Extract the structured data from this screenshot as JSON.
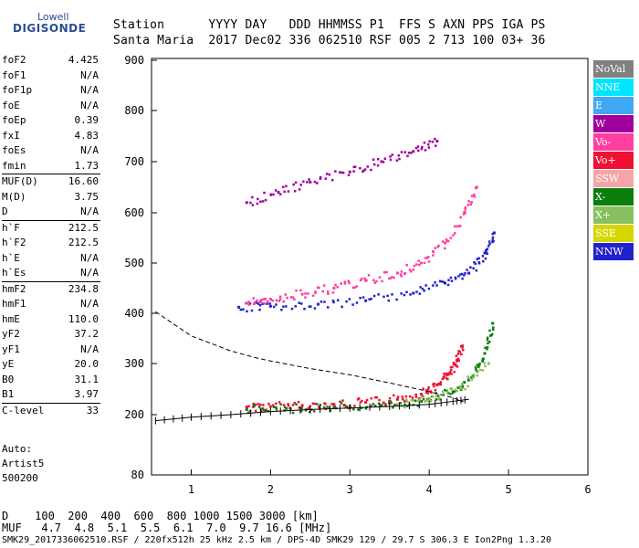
{
  "logo": {
    "line1": "Lowell",
    "line2": "DIGISONDE"
  },
  "header": {
    "row1": "Station      YYYY DAY   DDD HHMMSS P1  FFS S AXN PPS IGA PS",
    "row2": "Santa Maria  2017 Dec02 336 062510 RSF 005 2 713 100 03+ 36"
  },
  "side_groups": [
    [
      {
        "key": "foF2",
        "value": "4.425"
      },
      {
        "key": "foF1",
        "value": "N/A"
      },
      {
        "key": "foF1p",
        "value": "N/A"
      },
      {
        "key": "foE",
        "value": "N/A"
      },
      {
        "key": "foEp",
        "value": "0.39"
      },
      {
        "key": "fxI",
        "value": "4.83"
      },
      {
        "key": "foEs",
        "value": "N/A"
      },
      {
        "key": "fmin",
        "value": "1.73"
      }
    ],
    [
      {
        "key": "MUF(D)",
        "value": "16.60"
      },
      {
        "key": "M(D)",
        "value": "3.75"
      },
      {
        "key": "D",
        "value": "N/A"
      }
    ],
    [
      {
        "key": "h`F",
        "value": "212.5"
      },
      {
        "key": "h`F2",
        "value": "212.5"
      },
      {
        "key": "h`E",
        "value": "N/A"
      },
      {
        "key": "h`Es",
        "value": "N/A"
      }
    ],
    [
      {
        "key": "hmF2",
        "value": "234.8"
      },
      {
        "key": "hmF1",
        "value": "N/A"
      },
      {
        "key": "hmE",
        "value": "110.0"
      },
      {
        "key": "yF2",
        "value": "37.2"
      },
      {
        "key": "yF1",
        "value": "N/A"
      },
      {
        "key": "yE",
        "value": "20.0"
      },
      {
        "key": "B0",
        "value": "31.1"
      },
      {
        "key": "B1",
        "value": "3.97"
      }
    ],
    [
      {
        "key": "C-level",
        "value": "33"
      }
    ]
  ],
  "auto": {
    "line1": "Auto:",
    "line2": "Artist5",
    "line3": "500200"
  },
  "legend": [
    {
      "label": "NoVal",
      "color": "#808080"
    },
    {
      "label": "NNE",
      "color": "#00e5ff"
    },
    {
      "label": "E",
      "color": "#3fa9f5"
    },
    {
      "label": "W",
      "color": "#a0009e"
    },
    {
      "label": "Vo-",
      "color": "#ff3fa0"
    },
    {
      "label": "Vo+",
      "color": "#ee1133"
    },
    {
      "label": "SSW",
      "color": "#f4a6a6"
    },
    {
      "label": "X-",
      "color": "#0a7d0a"
    },
    {
      "label": "X+",
      "color": "#88c060"
    },
    {
      "label": "SSE",
      "color": "#d6d600"
    },
    {
      "label": "NNW",
      "color": "#2222cc"
    }
  ],
  "muf_table": {
    "row_d": "D    100  200  400  600  800 1000 1500 3000 [km]",
    "row_muf": "MUF   4.7  4.8  5.1  5.5  6.1  7.0  9.7 16.6 [MHz]"
  },
  "footer": "SMK29_2017336062510.RSF / 220fx512h 25 kHz 2.5 km / DPS-4D SMK29 129 / 29.7 S 306.3 E Ion2Png 1.3.20",
  "chart_data": {
    "type": "scatter",
    "title": "",
    "xlabel": "",
    "ylabel": "",
    "xlim": [
      0.5,
      6.0
    ],
    "ylim": [
      80,
      900
    ],
    "x_ticks": [
      1,
      2,
      3,
      4,
      5,
      6
    ],
    "y_ticks": [
      80,
      200,
      300,
      400,
      500,
      600,
      700,
      800,
      900
    ],
    "y_scale": "nonlinear",
    "series": [
      {
        "color": "#ee1133",
        "x": [
          1.7,
          2.0,
          2.4,
          2.8,
          3.2,
          3.6,
          3.9,
          4.1,
          4.25,
          4.35,
          4.42
        ],
        "y": [
          215,
          216,
          218,
          220,
          224,
          230,
          240,
          258,
          280,
          305,
          335
        ]
      },
      {
        "color": "#0a7d0a",
        "x": [
          1.7,
          2.2,
          2.8,
          3.4,
          3.9,
          4.3,
          4.55,
          4.7,
          4.8
        ],
        "y": [
          210,
          212,
          214,
          218,
          226,
          245,
          275,
          320,
          380
        ]
      },
      {
        "color": "#2222cc",
        "x": [
          1.6,
          2.0,
          2.6,
          3.2,
          3.8,
          4.2,
          4.5,
          4.7,
          4.82
        ],
        "y": [
          412,
          414,
          418,
          425,
          440,
          460,
          480,
          520,
          560
        ]
      },
      {
        "color": "#ff3fa0",
        "x": [
          1.7,
          2.0,
          2.4,
          2.8,
          3.2,
          3.6,
          3.9,
          4.2,
          4.45,
          4.6
        ],
        "y": [
          420,
          428,
          438,
          450,
          465,
          480,
          500,
          540,
          600,
          650
        ]
      },
      {
        "color": "#a0009e",
        "x": [
          1.7,
          2.1,
          2.5,
          3.0,
          3.4,
          3.8,
          4.1
        ],
        "y": [
          620,
          640,
          660,
          680,
          700,
          720,
          740
        ]
      },
      {
        "color": "#88c060",
        "x": [
          3.6,
          4.0,
          4.4,
          4.75
        ],
        "y": [
          220,
          232,
          252,
          300
        ]
      }
    ],
    "model_profile": {
      "color": "#000000",
      "x": [
        0.55,
        1.0,
        1.5,
        1.8,
        2.0,
        2.5,
        3.0,
        3.5,
        4.0,
        4.3,
        4.43
      ],
      "y": [
        403,
        355,
        325,
        312,
        305,
        290,
        278,
        262,
        245,
        233,
        225
      ]
    },
    "virtual_height_trace": {
      "color": "#000000",
      "x": [
        0.55,
        1.0,
        1.5,
        2.0,
        2.5,
        3.0,
        3.5,
        4.0,
        4.3,
        4.5
      ],
      "y": [
        188,
        195,
        200,
        206,
        210,
        213,
        216,
        220,
        226,
        230
      ]
    }
  }
}
